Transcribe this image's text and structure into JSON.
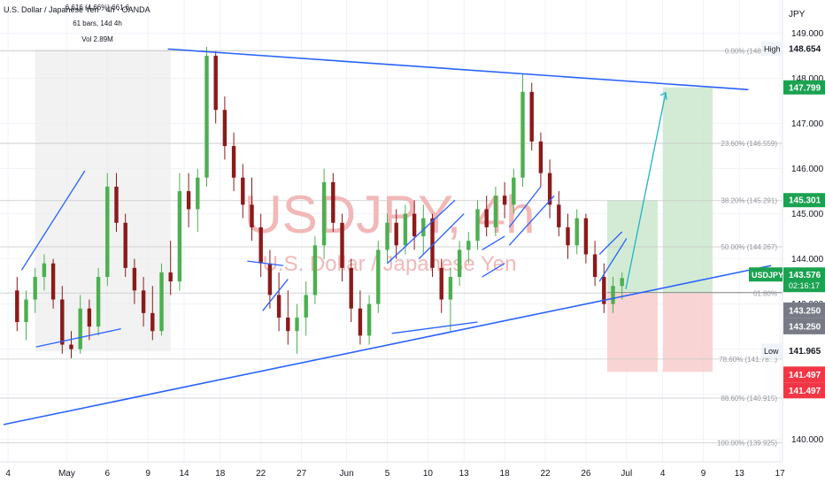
{
  "header": {
    "symbol_title": "U.S. Dollar / Japanese Yen · 4h · OANDA",
    "measure_line1": "6.616 (4.66%) 661.6",
    "measure_line2": "61 bars, 14d 4h",
    "measure_line3": "Vol 2.89M"
  },
  "watermark": {
    "ticker": "USDJPY, 4h",
    "name": "U.S. Dollar / Japanese Yen"
  },
  "axis": {
    "currency": "JPY",
    "ticks": [
      {
        "label": "149.000",
        "value": 149.0
      },
      {
        "label": "148.000",
        "value": 148.0
      },
      {
        "label": "147.000",
        "value": 147.0
      },
      {
        "label": "146.000",
        "value": 146.0
      },
      {
        "label": "145.000",
        "value": 145.0
      },
      {
        "label": "144.000",
        "value": 144.0
      },
      {
        "label": "143.000",
        "value": 143.0
      },
      {
        "label": "142.000",
        "value": 142.0
      },
      {
        "label": "141.000",
        "value": 141.0
      },
      {
        "label": "140.000",
        "value": 140.0
      }
    ]
  },
  "price_tags": {
    "high_label": "High",
    "high_value": "148.654",
    "target": "147.799",
    "tp_box": "145.301",
    "symbol": "USDJPY",
    "current": "143.576",
    "countdown": "02:16:17",
    "entry_a": "143.250",
    "entry_b": "143.250",
    "low_label": "Low",
    "low_value": "141.965",
    "stop_a": "141.497",
    "stop_b": "141.497"
  },
  "fib_levels": [
    {
      "label": "0.00% (148.609)",
      "value": 148.609
    },
    {
      "label": "23.60% (146.559)",
      "value": 146.559
    },
    {
      "label": "38.20% (145.291)",
      "value": 145.291
    },
    {
      "label": "50.00% (144.267)",
      "value": 144.267
    },
    {
      "label": "61.80%",
      "value": 143.242
    },
    {
      "label": "78.60% (141.78...)",
      "value": 141.78
    },
    {
      "label": "88.60% (140.915)",
      "value": 140.915
    },
    {
      "label": "100.00% (139.925)",
      "value": 139.925
    }
  ],
  "x_axis": {
    "ticks": [
      {
        "label": "4",
        "slot": 0.5
      },
      {
        "label": "May",
        "slot": 7
      },
      {
        "label": "6",
        "slot": 11.5
      },
      {
        "label": "9",
        "slot": 16
      },
      {
        "label": "14",
        "slot": 20
      },
      {
        "label": "18",
        "slot": 24
      },
      {
        "label": "22",
        "slot": 28.5
      },
      {
        "label": "27",
        "slot": 33
      },
      {
        "label": "Jun",
        "slot": 38
      },
      {
        "label": "5",
        "slot": 42.5
      },
      {
        "label": "10",
        "slot": 47
      },
      {
        "label": "13",
        "slot": 51
      },
      {
        "label": "18",
        "slot": 55.5
      },
      {
        "label": "22",
        "slot": 60
      },
      {
        "label": "26",
        "slot": 64.5
      },
      {
        "label": "Jul",
        "slot": 69
      },
      {
        "label": "4",
        "slot": 73
      },
      {
        "label": "9",
        "slot": 77.5
      },
      {
        "label": "13",
        "slot": 81.5
      },
      {
        "label": "17",
        "slot": 86
      }
    ]
  },
  "colors": {
    "up": "#26a69a",
    "down": "#ef5350",
    "candle_up": "#4caf50",
    "candle_down": "#8b1a1a",
    "trendline": "#2962ff",
    "arrow": "#22b3c8",
    "profit_zone": "#c8e6c9",
    "loss_zone": "#f8c9c9",
    "symbol_tag": "#1aa251",
    "entry_tag": "#787b86",
    "stop_tag": "#f23645"
  },
  "chart_data": {
    "type": "candlestick",
    "symbol": "USDJPY",
    "timeframe": "4h",
    "exchange": "OANDA",
    "ylim": [
      139.7,
      149.5
    ],
    "candles": [
      {
        "o": 143.3,
        "h": 143.6,
        "l": 142.4,
        "c": 142.6
      },
      {
        "o": 142.6,
        "h": 143.3,
        "l": 142.2,
        "c": 143.1
      },
      {
        "o": 143.1,
        "h": 143.8,
        "l": 142.8,
        "c": 143.6
      },
      {
        "o": 143.6,
        "h": 144.1,
        "l": 143.3,
        "c": 143.9
      },
      {
        "o": 143.9,
        "h": 144.0,
        "l": 142.9,
        "c": 143.1
      },
      {
        "o": 143.1,
        "h": 143.4,
        "l": 141.9,
        "c": 142.1
      },
      {
        "o": 142.1,
        "h": 142.4,
        "l": 141.8,
        "c": 142.0
      },
      {
        "o": 142.0,
        "h": 143.2,
        "l": 141.9,
        "c": 142.9
      },
      {
        "o": 142.9,
        "h": 143.1,
        "l": 142.2,
        "c": 142.5
      },
      {
        "o": 142.5,
        "h": 143.8,
        "l": 142.3,
        "c": 143.6
      },
      {
        "o": 143.6,
        "h": 145.9,
        "l": 143.4,
        "c": 145.6
      },
      {
        "o": 145.6,
        "h": 145.9,
        "l": 144.6,
        "c": 144.8
      },
      {
        "o": 144.8,
        "h": 145.0,
        "l": 143.6,
        "c": 143.8
      },
      {
        "o": 143.8,
        "h": 144.0,
        "l": 143.0,
        "c": 143.3
      },
      {
        "o": 143.3,
        "h": 143.6,
        "l": 142.5,
        "c": 142.8
      },
      {
        "o": 142.8,
        "h": 143.4,
        "l": 142.2,
        "c": 142.4
      },
      {
        "o": 142.4,
        "h": 143.9,
        "l": 142.3,
        "c": 143.7
      },
      {
        "o": 143.7,
        "h": 144.4,
        "l": 143.2,
        "c": 143.5
      },
      {
        "o": 143.5,
        "h": 145.9,
        "l": 143.3,
        "c": 145.5
      },
      {
        "o": 145.5,
        "h": 145.9,
        "l": 144.7,
        "c": 145.1
      },
      {
        "o": 145.1,
        "h": 146.0,
        "l": 144.6,
        "c": 145.8
      },
      {
        "o": 145.8,
        "h": 148.7,
        "l": 145.6,
        "c": 148.5
      },
      {
        "o": 148.5,
        "h": 148.6,
        "l": 147.0,
        "c": 147.3
      },
      {
        "o": 147.3,
        "h": 147.6,
        "l": 146.2,
        "c": 146.5
      },
      {
        "o": 146.5,
        "h": 146.8,
        "l": 145.5,
        "c": 145.8
      },
      {
        "o": 145.8,
        "h": 146.1,
        "l": 144.9,
        "c": 145.2
      },
      {
        "o": 145.2,
        "h": 145.8,
        "l": 144.4,
        "c": 144.7
      },
      {
        "o": 144.7,
        "h": 145.0,
        "l": 143.6,
        "c": 143.9
      },
      {
        "o": 143.9,
        "h": 144.2,
        "l": 142.9,
        "c": 143.2
      },
      {
        "o": 143.2,
        "h": 143.7,
        "l": 142.4,
        "c": 142.7
      },
      {
        "o": 142.7,
        "h": 143.3,
        "l": 142.1,
        "c": 142.4
      },
      {
        "o": 142.4,
        "h": 143.0,
        "l": 141.9,
        "c": 142.7
      },
      {
        "o": 142.7,
        "h": 143.5,
        "l": 142.3,
        "c": 143.2
      },
      {
        "o": 143.2,
        "h": 144.5,
        "l": 143.0,
        "c": 144.3
      },
      {
        "o": 144.3,
        "h": 146.0,
        "l": 144.0,
        "c": 145.7
      },
      {
        "o": 145.7,
        "h": 145.9,
        "l": 144.6,
        "c": 144.8
      },
      {
        "o": 144.8,
        "h": 145.0,
        "l": 143.5,
        "c": 143.8
      },
      {
        "o": 143.8,
        "h": 144.0,
        "l": 142.6,
        "c": 142.9
      },
      {
        "o": 142.9,
        "h": 143.3,
        "l": 142.1,
        "c": 142.3
      },
      {
        "o": 142.3,
        "h": 143.2,
        "l": 142.1,
        "c": 143.0
      },
      {
        "o": 143.0,
        "h": 144.4,
        "l": 142.8,
        "c": 144.2
      },
      {
        "o": 144.2,
        "h": 145.0,
        "l": 143.9,
        "c": 144.8
      },
      {
        "o": 144.8,
        "h": 145.1,
        "l": 144.0,
        "c": 144.3
      },
      {
        "o": 144.3,
        "h": 145.2,
        "l": 144.1,
        "c": 145.0
      },
      {
        "o": 145.0,
        "h": 145.3,
        "l": 144.2,
        "c": 144.5
      },
      {
        "o": 144.5,
        "h": 145.2,
        "l": 144.1,
        "c": 144.9
      },
      {
        "o": 144.9,
        "h": 145.0,
        "l": 143.6,
        "c": 143.8
      },
      {
        "o": 143.8,
        "h": 144.0,
        "l": 142.8,
        "c": 143.1
      },
      {
        "o": 143.1,
        "h": 143.8,
        "l": 142.4,
        "c": 143.6
      },
      {
        "o": 143.6,
        "h": 144.4,
        "l": 143.4,
        "c": 144.2
      },
      {
        "o": 144.2,
        "h": 144.6,
        "l": 143.9,
        "c": 144.4
      },
      {
        "o": 144.4,
        "h": 145.3,
        "l": 144.2,
        "c": 145.1
      },
      {
        "o": 145.1,
        "h": 145.4,
        "l": 144.5,
        "c": 144.7
      },
      {
        "o": 144.7,
        "h": 145.6,
        "l": 144.5,
        "c": 145.4
      },
      {
        "o": 145.4,
        "h": 145.7,
        "l": 144.9,
        "c": 145.2
      },
      {
        "o": 145.2,
        "h": 146.0,
        "l": 145.0,
        "c": 145.8
      },
      {
        "o": 145.8,
        "h": 148.1,
        "l": 145.6,
        "c": 147.7
      },
      {
        "o": 147.7,
        "h": 147.9,
        "l": 146.4,
        "c": 146.6
      },
      {
        "o": 146.6,
        "h": 146.8,
        "l": 145.6,
        "c": 145.9
      },
      {
        "o": 145.9,
        "h": 146.2,
        "l": 144.9,
        "c": 145.2
      },
      {
        "o": 145.2,
        "h": 145.5,
        "l": 144.5,
        "c": 144.7
      },
      {
        "o": 144.7,
        "h": 145.0,
        "l": 144.0,
        "c": 144.3
      },
      {
        "o": 144.3,
        "h": 145.1,
        "l": 144.1,
        "c": 144.9
      },
      {
        "o": 144.9,
        "h": 145.0,
        "l": 143.9,
        "c": 144.1
      },
      {
        "o": 144.1,
        "h": 144.4,
        "l": 143.4,
        "c": 143.6
      },
      {
        "o": 143.6,
        "h": 143.9,
        "l": 142.8,
        "c": 143.0
      },
      {
        "o": 143.0,
        "h": 143.6,
        "l": 142.8,
        "c": 143.4
      },
      {
        "o": 143.4,
        "h": 143.7,
        "l": 143.1,
        "c": 143.576
      }
    ],
    "trendlines": [
      {
        "name": "upper-resistance",
        "from": {
          "slot": 18.2,
          "price": 148.65
        },
        "to": {
          "slot": 82.5,
          "price": 147.75
        }
      },
      {
        "name": "lower-support",
        "from": {
          "slot": 0,
          "price": 140.33
        },
        "to": {
          "slot": 85,
          "price": 143.85
        }
      },
      {
        "name": "wedge-1",
        "from": {
          "slot": 2,
          "price": 143.75
        },
        "to": {
          "slot": 9,
          "price": 145.95
        }
      },
      {
        "name": "wedge-2",
        "from": {
          "slot": 3.6,
          "price": 142.05
        },
        "to": {
          "slot": 13,
          "price": 142.45
        }
      },
      {
        "name": "channel-3",
        "from": {
          "slot": 27,
          "price": 143.95
        },
        "to": {
          "slot": 31,
          "price": 143.85
        }
      },
      {
        "name": "channel-4",
        "from": {
          "slot": 28.7,
          "price": 142.85
        },
        "to": {
          "slot": 31.5,
          "price": 143.55
        }
      },
      {
        "name": "channel-5",
        "from": {
          "slot": 42.5,
          "price": 143.9
        },
        "to": {
          "slot": 50,
          "price": 145.3
        }
      },
      {
        "name": "channel-6",
        "from": {
          "slot": 43,
          "price": 142.35
        },
        "to": {
          "slot": 52.5,
          "price": 142.6
        }
      },
      {
        "name": "channel-7",
        "from": {
          "slot": 46,
          "price": 144.0
        },
        "to": {
          "slot": 51,
          "price": 145.0
        }
      },
      {
        "name": "channel-8",
        "from": {
          "slot": 53,
          "price": 144.2
        },
        "to": {
          "slot": 55.5,
          "price": 144.5
        }
      },
      {
        "name": "channel-9",
        "from": {
          "slot": 53,
          "price": 143.6
        },
        "to": {
          "slot": 55.5,
          "price": 143.9
        }
      },
      {
        "name": "channel-10",
        "from": {
          "slot": 56,
          "price": 144.7
        },
        "to": {
          "slot": 59.5,
          "price": 145.6
        }
      },
      {
        "name": "channel-11",
        "from": {
          "slot": 56,
          "price": 144.3
        },
        "to": {
          "slot": 61,
          "price": 145.4
        }
      },
      {
        "name": "flag-12",
        "from": {
          "slot": 66,
          "price": 144.1
        },
        "to": {
          "slot": 68.5,
          "price": 144.6
        }
      },
      {
        "name": "flag-13",
        "from": {
          "slot": 66,
          "price": 143.5
        },
        "to": {
          "slot": 69,
          "price": 144.45
        }
      }
    ],
    "position": {
      "entry": 143.25,
      "target": 147.799,
      "tp_box": 145.301,
      "stop": 141.497
    },
    "measure_box": {
      "from_slot": 3.5,
      "to_slot": 18.5,
      "low": 141.95,
      "high": 148.65
    }
  }
}
